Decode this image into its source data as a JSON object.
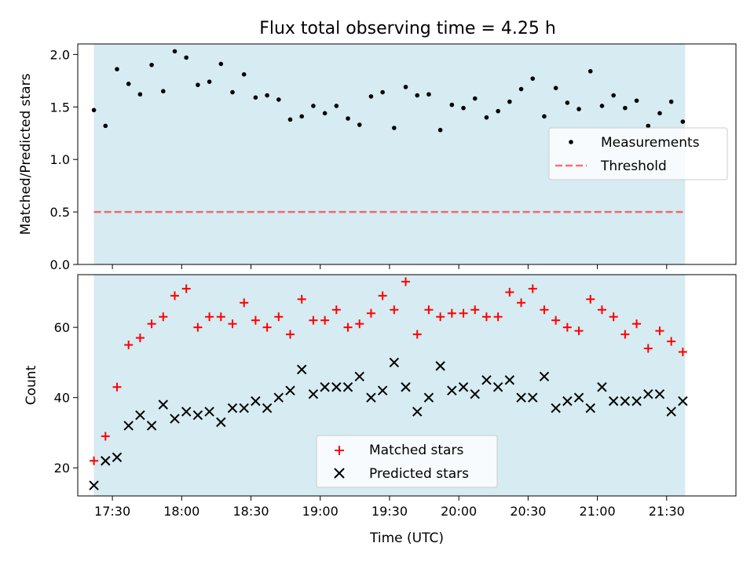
{
  "figure_title": "Flux total observing time = 4.25 h",
  "colors": {
    "observing_band": "#add8e6",
    "measurements": "#000000",
    "threshold": "#ff0000",
    "matched": "#ff0000",
    "predicted": "#000000"
  },
  "chart_data": [
    {
      "type": "scatter",
      "ylabel": "Matched/Predicted stars",
      "xlabel": "",
      "xlim": [
        "17:15",
        "22:00"
      ],
      "ylim": [
        0,
        2.1
      ],
      "yticks": [
        0.0,
        0.5,
        1.0,
        1.5,
        2.0
      ],
      "ytick_labels": [
        "0.0",
        "0.5",
        "1.0",
        "1.5",
        "2.0"
      ],
      "xticks": [
        "17:30",
        "18:00",
        "18:30",
        "19:00",
        "19:30",
        "20:00",
        "20:30",
        "21:00",
        "21:30"
      ],
      "shaded_span": [
        "17:22",
        "21:38"
      ],
      "legend_position": "center-right",
      "x": [
        "17:22",
        "17:27",
        "17:32",
        "17:37",
        "17:42",
        "17:47",
        "17:52",
        "17:57",
        "18:02",
        "18:07",
        "18:12",
        "18:17",
        "18:22",
        "18:27",
        "18:32",
        "18:37",
        "18:42",
        "18:47",
        "18:52",
        "18:57",
        "19:02",
        "19:07",
        "19:12",
        "19:17",
        "19:22",
        "19:27",
        "19:32",
        "19:37",
        "19:42",
        "19:47",
        "19:52",
        "19:57",
        "20:02",
        "20:07",
        "20:12",
        "20:17",
        "20:22",
        "20:27",
        "20:32",
        "20:37",
        "20:42",
        "20:47",
        "20:52",
        "20:57",
        "21:02",
        "21:07",
        "21:12",
        "21:17",
        "21:22",
        "21:27",
        "21:32",
        "21:37"
      ],
      "series": [
        {
          "name": "Measurements",
          "marker": "dot",
          "values": [
            1.47,
            1.32,
            1.86,
            1.72,
            1.62,
            1.9,
            1.65,
            2.03,
            1.97,
            1.71,
            1.74,
            1.91,
            1.64,
            1.81,
            1.59,
            1.61,
            1.57,
            1.38,
            1.41,
            1.51,
            1.44,
            1.51,
            1.39,
            1.33,
            1.6,
            1.64,
            1.3,
            1.69,
            1.61,
            1.62,
            1.28,
            1.52,
            1.49,
            1.58,
            1.4,
            1.46,
            1.55,
            1.67,
            1.77,
            1.41,
            1.68,
            1.54,
            1.48,
            1.84,
            1.51,
            1.61,
            1.49,
            1.56,
            1.32,
            1.44,
            1.55,
            1.36
          ]
        },
        {
          "name": "Threshold",
          "marker": "dashed-line",
          "x": [
            "17:22",
            "21:37"
          ],
          "values": [
            0.5,
            0.5
          ]
        }
      ]
    },
    {
      "type": "scatter",
      "ylabel": "Count",
      "xlabel": "Time (UTC)",
      "xlim": [
        "17:15",
        "22:00"
      ],
      "ylim": [
        12,
        75
      ],
      "yticks": [
        20,
        40,
        60
      ],
      "ytick_labels": [
        "20",
        "40",
        "60"
      ],
      "xticks": [
        "17:30",
        "18:00",
        "18:30",
        "19:00",
        "19:30",
        "20:00",
        "20:30",
        "21:00",
        "21:30"
      ],
      "shaded_span": [
        "17:22",
        "21:38"
      ],
      "legend_position": "bottom-center",
      "x": [
        "17:22",
        "17:27",
        "17:32",
        "17:37",
        "17:42",
        "17:47",
        "17:52",
        "17:57",
        "18:02",
        "18:07",
        "18:12",
        "18:17",
        "18:22",
        "18:27",
        "18:32",
        "18:37",
        "18:42",
        "18:47",
        "18:52",
        "18:57",
        "19:02",
        "19:07",
        "19:12",
        "19:17",
        "19:22",
        "19:27",
        "19:32",
        "19:37",
        "19:42",
        "19:47",
        "19:52",
        "19:57",
        "20:02",
        "20:07",
        "20:12",
        "20:17",
        "20:22",
        "20:27",
        "20:32",
        "20:37",
        "20:42",
        "20:47",
        "20:52",
        "20:57",
        "21:02",
        "21:07",
        "21:12",
        "21:17",
        "21:22",
        "21:27",
        "21:32",
        "21:37"
      ],
      "series": [
        {
          "name": "Matched stars",
          "marker": "plus",
          "values": [
            22,
            29,
            43,
            55,
            57,
            61,
            63,
            69,
            71,
            60,
            63,
            63,
            61,
            67,
            62,
            60,
            63,
            58,
            68,
            62,
            62,
            65,
            60,
            61,
            64,
            69,
            65,
            73,
            58,
            65,
            63,
            64,
            64,
            65,
            63,
            63,
            70,
            67,
            71,
            65,
            62,
            60,
            59,
            68,
            65,
            63,
            58,
            61,
            54,
            59,
            56,
            53
          ]
        },
        {
          "name": "Predicted stars",
          "marker": "x",
          "values": [
            15,
            22,
            23,
            32,
            35,
            32,
            38,
            34,
            36,
            35,
            36,
            33,
            37,
            37,
            39,
            37,
            40,
            42,
            48,
            41,
            43,
            43,
            43,
            46,
            40,
            42,
            50,
            43,
            36,
            40,
            49,
            42,
            43,
            41,
            45,
            43,
            45,
            40,
            40,
            46,
            37,
            39,
            40,
            37,
            43,
            39,
            39,
            39,
            41,
            41,
            36,
            39
          ]
        }
      ]
    }
  ]
}
